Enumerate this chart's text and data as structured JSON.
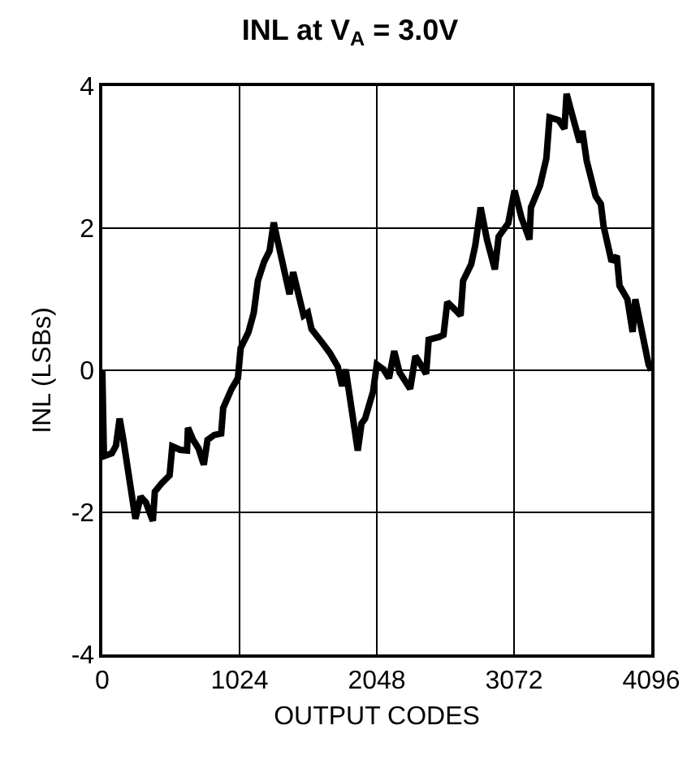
{
  "chart_data": {
    "type": "line",
    "title": "INL at V$_{A}$ = 3.0V",
    "xlabel": "OUTPUT CODES",
    "ylabel": "INL (LSBs)",
    "xlim": [
      0,
      4096
    ],
    "xticks": [
      0,
      1024,
      2048,
      3072,
      4096
    ],
    "ylim": [
      -4,
      4
    ],
    "yticks": [
      -4,
      -2,
      0,
      2,
      4
    ],
    "grid": true,
    "marker": "none",
    "line_style": "solid",
    "series": [
      {
        "color": "#000000",
        "x": [
          0,
          12,
          71,
          102,
          129,
          157,
          247,
          286,
          325,
          377,
          392,
          443,
          502,
          522,
          581,
          632,
          639,
          678,
          718,
          757,
          785,
          836,
          887,
          902,
          965,
          1012,
          1032,
          1091,
          1130,
          1161,
          1208,
          1248,
          1279,
          1306,
          1397,
          1424,
          1502,
          1534,
          1561,
          1640,
          1699,
          1757,
          1789,
          1816,
          1906,
          1934,
          1961,
          2020,
          2048,
          2099,
          2139,
          2178,
          2218,
          2297,
          2336,
          2376,
          2416,
          2435,
          2514,
          2546,
          2574,
          2633,
          2673,
          2692,
          2752,
          2783,
          2823,
          2870,
          2929,
          2957,
          3029,
          3076,
          3127,
          3187,
          3198,
          3266,
          3313,
          3337,
          3404,
          3448,
          3464,
          3511,
          3562,
          3582,
          3614,
          3681,
          3720,
          3740,
          3800,
          3839,
          3859,
          3918,
          3957,
          3977,
          4076,
          4096
        ],
        "values": [
          0,
          -1.21,
          -1.17,
          -1.06,
          -0.68,
          -0.98,
          -2.09,
          -1.78,
          -1.86,
          -2.12,
          -1.71,
          -1.59,
          -1.48,
          -1.07,
          -1.12,
          -1.13,
          -0.81,
          -0.98,
          -1.1,
          -1.33,
          -0.98,
          -0.91,
          -0.89,
          -0.53,
          -0.26,
          -0.11,
          0.31,
          0.54,
          0.81,
          1.26,
          1.53,
          1.68,
          2.08,
          1.84,
          1.07,
          1.38,
          0.77,
          0.81,
          0.58,
          0.39,
          0.24,
          0.05,
          -0.22,
          0.01,
          -1.13,
          -0.75,
          -0.68,
          -0.3,
          0.08,
          0.01,
          -0.11,
          0.27,
          -0.03,
          -0.26,
          0.2,
          0.08,
          -0.05,
          0.43,
          0.47,
          0.5,
          0.96,
          0.85,
          0.77,
          1.26,
          1.49,
          1.76,
          2.29,
          1.84,
          1.42,
          1.88,
          2.07,
          2.53,
          2.15,
          1.84,
          2.29,
          2.6,
          2.98,
          3.56,
          3.52,
          3.4,
          3.89,
          3.56,
          3.21,
          3.37,
          2.95,
          2.45,
          2.34,
          2.03,
          1.53,
          1.61,
          1.19,
          1,
          0.54,
          1,
          0.08,
          0
        ]
      }
    ]
  }
}
